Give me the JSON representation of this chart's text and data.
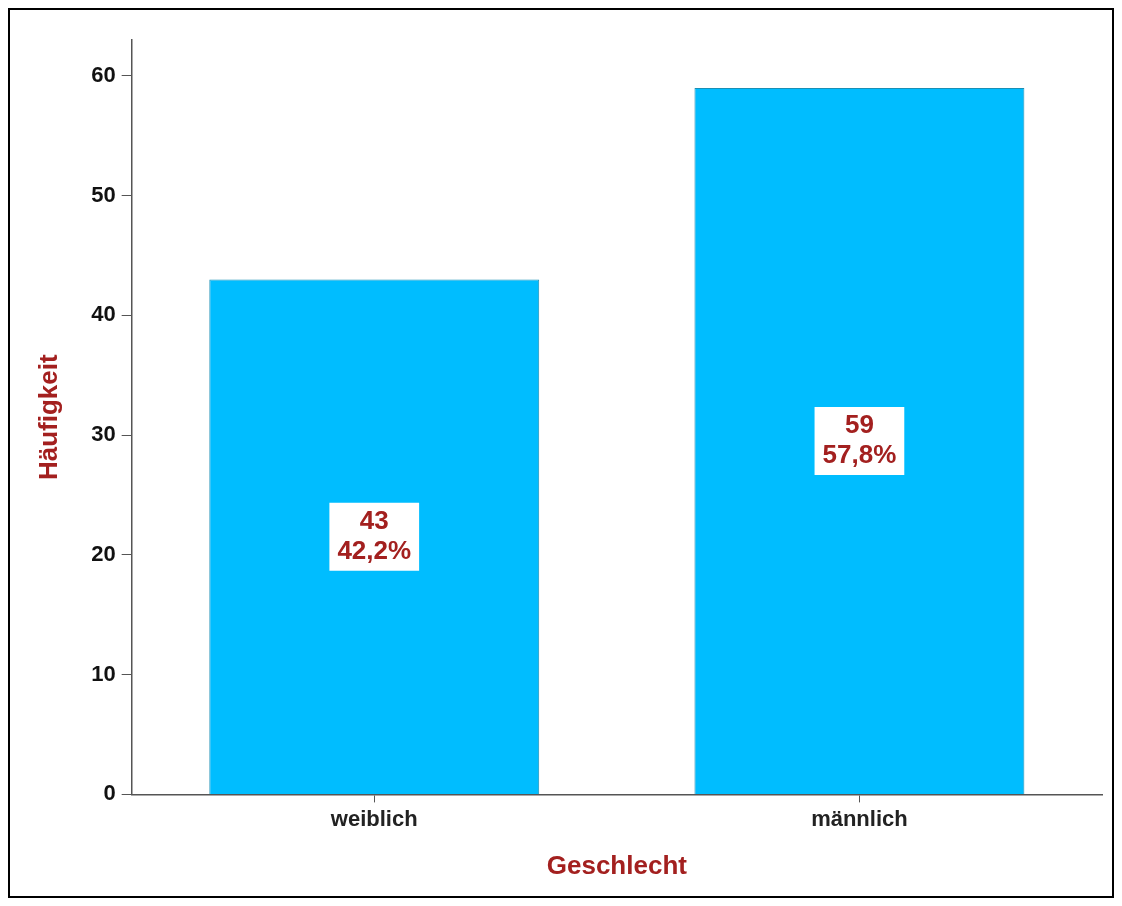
{
  "chart_data": {
    "type": "bar",
    "xlabel": "Geschlecht",
    "ylabel": "Häufigkeit",
    "categories": [
      "weiblich",
      "männlich"
    ],
    "values": [
      43,
      59
    ],
    "value_labels": [
      "43\n42,2%",
      "59\n57,8%"
    ],
    "color": "#00bdff",
    "ylim": [
      0,
      63
    ],
    "yticks": [
      0,
      10,
      20,
      30,
      40,
      50,
      60
    ],
    "grid": false,
    "legend": false
  }
}
